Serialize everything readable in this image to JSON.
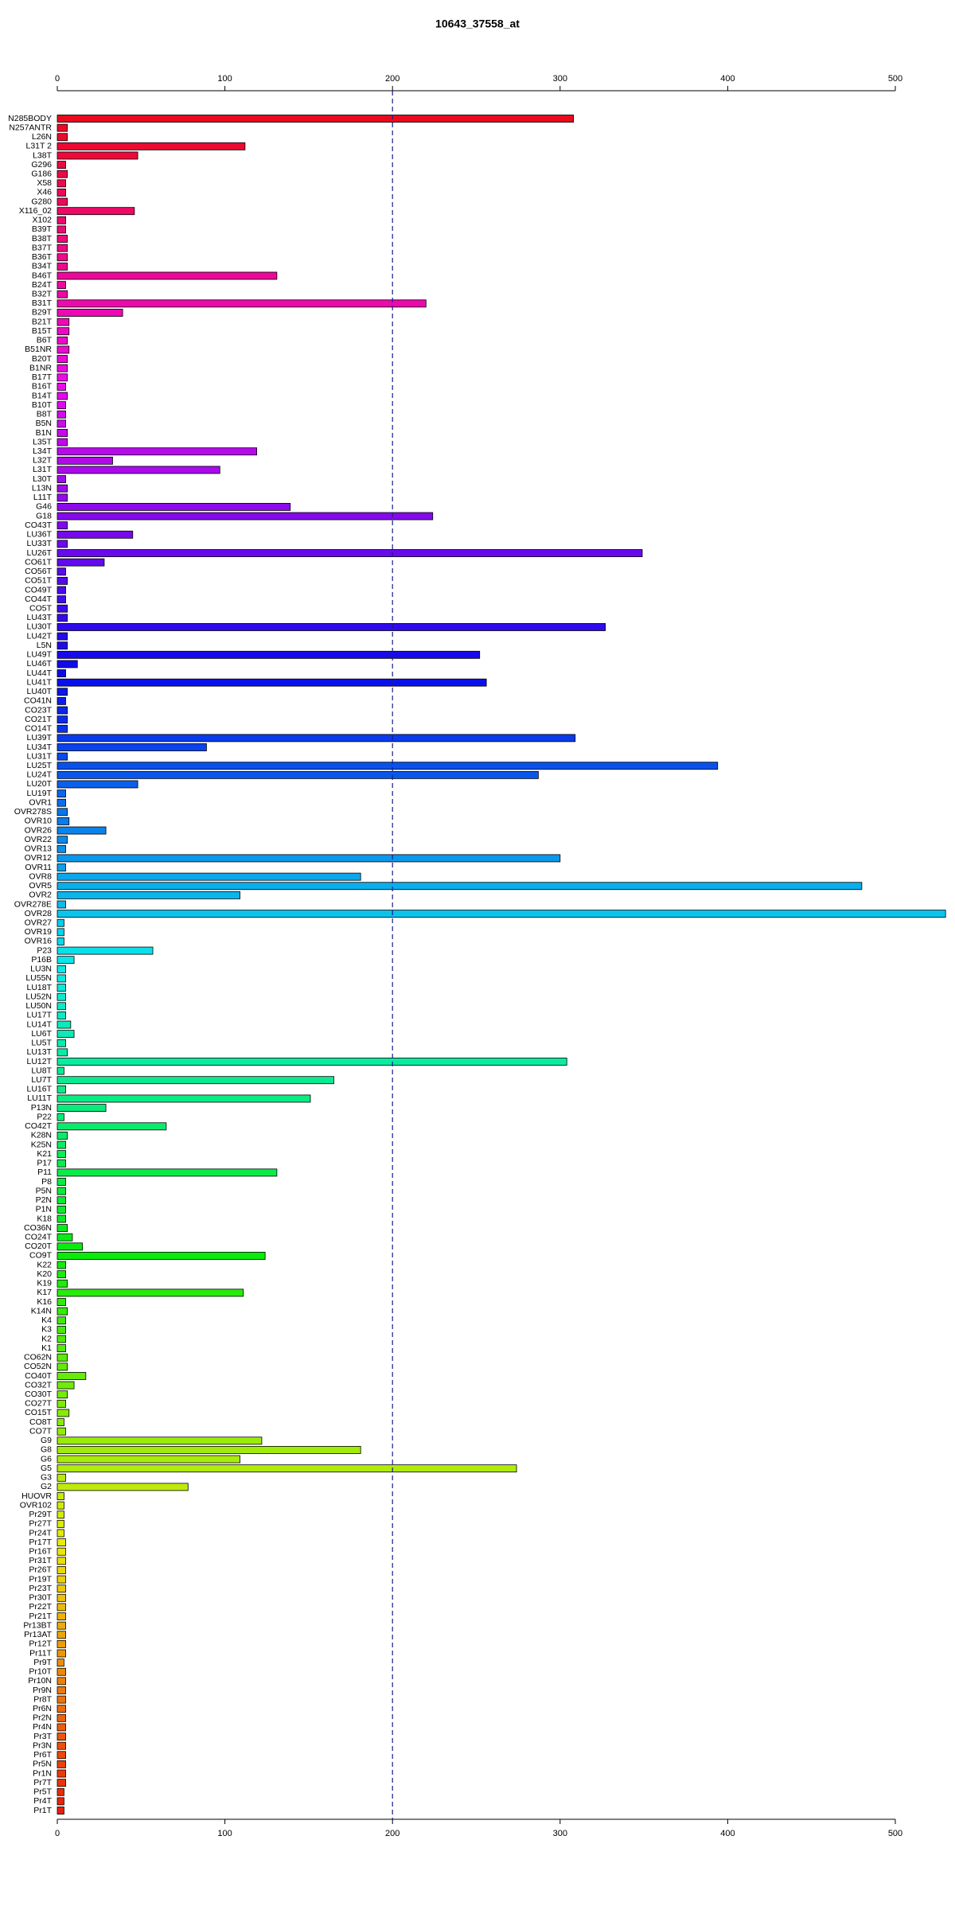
{
  "chart_data": {
    "type": "barh",
    "title": "10643_37558_at",
    "categories": [
      "N285BODY",
      "N257ANTR",
      "L26N",
      "L31T 2",
      "L38T",
      "G296",
      "G186",
      "X58",
      "X46",
      "G280",
      "X116_02",
      "X102",
      "B39T",
      "B38T",
      "B37T",
      "B36T",
      "B34T",
      "B46T",
      "B24T",
      "B32T",
      "B31T",
      "B29T",
      "B21T",
      "B15T",
      "B6T",
      "B51NR",
      "B20T",
      "B1NR",
      "B17T",
      "B16T",
      "B14T",
      "B10T",
      "B8T",
      "B5N",
      "B1N",
      "L35T",
      "L34T",
      "L32T",
      "L31T",
      "L30T",
      "L13N",
      "L11T",
      "G46",
      "G18",
      "CO43T",
      "LU36T",
      "LU33T",
      "LU26T",
      "CO61T",
      "CO56T",
      "CO51T",
      "CO49T",
      "CO44T",
      "CO5T",
      "LU43T",
      "LU30T",
      "LU42T",
      "L5N",
      "LU49T",
      "LU46T",
      "LU44T",
      "LU41T",
      "LU40T",
      "CO41N",
      "CO23T",
      "CO21T",
      "CO14T",
      "LU39T",
      "LU34T",
      "LU31T",
      "LU25T",
      "LU24T",
      "LU20T",
      "LU19T",
      "OVR1",
      "OVR278S",
      "OVR10",
      "OVR26",
      "OVR22",
      "OVR13",
      "OVR12",
      "OVR11",
      "OVR8",
      "OVR5",
      "OVR2",
      "OVR278E",
      "OVR28",
      "OVR27",
      "OVR19",
      "OVR16",
      "P23",
      "P16B",
      "LU3N",
      "LU55N",
      "LU18T",
      "LU52N",
      "LU50N",
      "LU17T",
      "LU14T",
      "LU6T",
      "LU5T",
      "LU13T",
      "LU12T",
      "LU8T",
      "LU7T",
      "LU16T",
      "LU11T",
      "P13N",
      "P22",
      "CO42T",
      "K28N",
      "K25N",
      "K21",
      "P17",
      "P11",
      "P8",
      "P5N",
      "P2N",
      "P1N",
      "K18",
      "CO36N",
      "CO24T",
      "CO20T",
      "CO9T",
      "K22",
      "K20",
      "K19",
      "K17",
      "K16",
      "K14N",
      "K4",
      "K3",
      "K2",
      "K1",
      "CO62N",
      "CO52N",
      "CO40T",
      "CO32T",
      "CO30T",
      "CO27T",
      "CO15T",
      "CO8T",
      "CO7T",
      "G9",
      "G8",
      "G6",
      "G5",
      "G3",
      "G2",
      "HUOVR",
      "OVR102",
      "Pr29T",
      "Pr27T",
      "Pr24T",
      "Pr17T",
      "Pr16T",
      "Pr31T",
      "Pr26T",
      "Pr19T",
      "Pr23T",
      "Pr30T",
      "Pr22T",
      "Pr21T",
      "Pr13BT",
      "Pr13AT",
      "Pr12T",
      "Pr11T",
      "Pr9T",
      "Pr10T",
      "Pr10N",
      "Pr9N",
      "Pr8T",
      "Pr6N",
      "Pr2N",
      "Pr4N",
      "Pr3T",
      "Pr3N",
      "Pr6T",
      "Pr5N",
      "Pr1N",
      "Pr7T",
      "Pr5T",
      "Pr4T",
      "Pr1T"
    ],
    "values": [
      308,
      6,
      6,
      112,
      48,
      5,
      6,
      5,
      5,
      6,
      46,
      5,
      5,
      6,
      6,
      6,
      6,
      131,
      5,
      6,
      220,
      39,
      7,
      7,
      6,
      7,
      6,
      6,
      6,
      5,
      6,
      5,
      5,
      5,
      6,
      6,
      119,
      33,
      97,
      5,
      6,
      6,
      139,
      224,
      6,
      45,
      6,
      349,
      28,
      5,
      6,
      5,
      5,
      6,
      6,
      327,
      6,
      6,
      252,
      12,
      5,
      256,
      6,
      5,
      6,
      6,
      6,
      309,
      89,
      6,
      394,
      287,
      48,
      5,
      5,
      6,
      7,
      29,
      6,
      5,
      300,
      5,
      181,
      480,
      109,
      5,
      530,
      4,
      4,
      4,
      57,
      10,
      5,
      5,
      5,
      5,
      5,
      5,
      8,
      10,
      5,
      6,
      304,
      4,
      165,
      5,
      151,
      29,
      4,
      65,
      6,
      5,
      5,
      5,
      131,
      5,
      5,
      5,
      5,
      5,
      6,
      9,
      15,
      124,
      5,
      5,
      6,
      111,
      5,
      6,
      5,
      5,
      5,
      5,
      6,
      6,
      17,
      10,
      6,
      5,
      7,
      4,
      5,
      122,
      181,
      109,
      274,
      5,
      78,
      4,
      4,
      4,
      4,
      4,
      5,
      5,
      5,
      5,
      5,
      5,
      5,
      5,
      5,
      5,
      5,
      5,
      5,
      4,
      5,
      5,
      5,
      5,
      5,
      5,
      5,
      5,
      5,
      5,
      5,
      5,
      5,
      4,
      4,
      4
    ],
    "colors": {
      "scheme": "hue",
      "from": 355,
      "to": 5,
      "saturation": 92,
      "lightness": 48
    },
    "xlim": [
      0,
      500
    ],
    "xticks": [
      0,
      100,
      200,
      300,
      400,
      500
    ],
    "reference_line": 200,
    "bar_edge_color": "#000000",
    "reference_line_color": "#1a1a8c"
  }
}
